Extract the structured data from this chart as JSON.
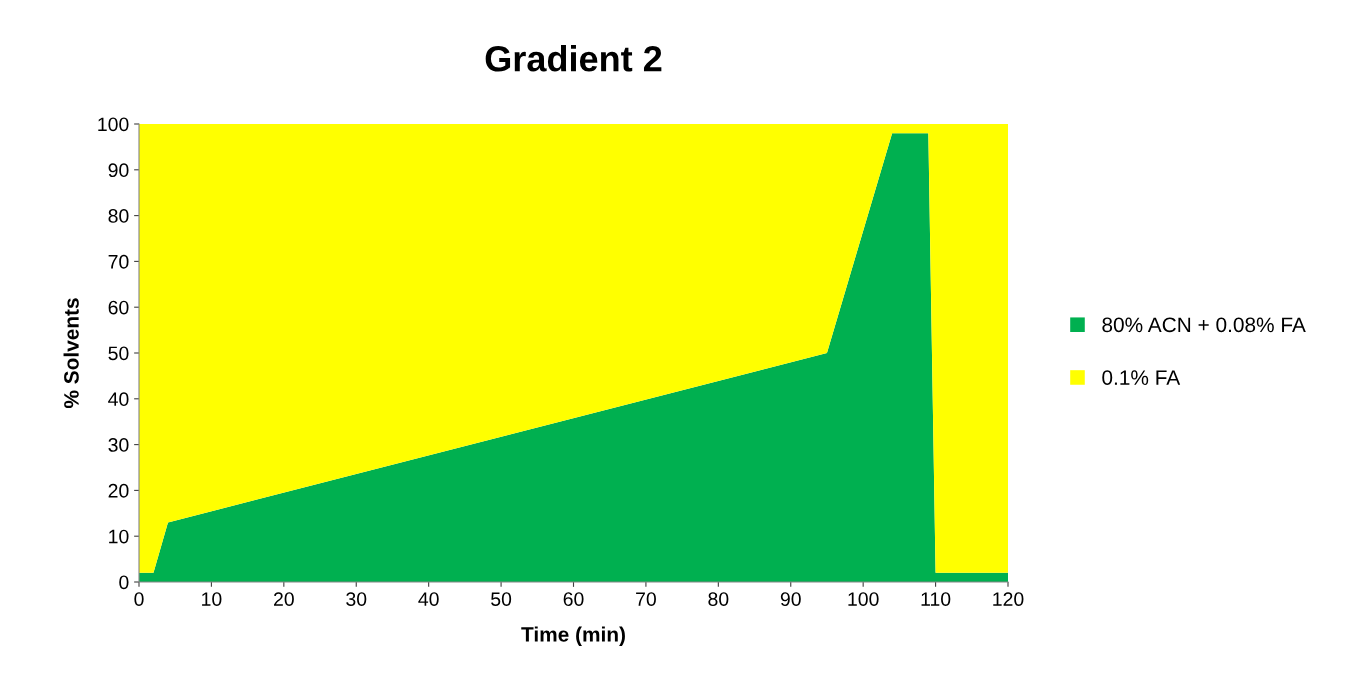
{
  "chart_data": {
    "type": "area",
    "title": "Gradient 2",
    "xlabel": "Time (min)",
    "ylabel": "% Solvents",
    "stacked": true,
    "x": [
      0,
      2,
      4,
      95,
      104,
      109,
      110,
      120
    ],
    "series": [
      {
        "name": "80% ACN + 0.08% FA",
        "color": "#00b050",
        "values": [
          2,
          2,
          13,
          50,
          98,
          98,
          2,
          2
        ]
      },
      {
        "name": "0.1% FA",
        "color": "#ffff00",
        "values": [
          98,
          98,
          87,
          50,
          2,
          2,
          98,
          98
        ]
      }
    ],
    "xlim": [
      0,
      120
    ],
    "xticks": [
      0,
      10,
      20,
      30,
      40,
      50,
      60,
      70,
      80,
      90,
      100,
      110,
      120
    ],
    "ylim": [
      0,
      100
    ],
    "yticks": [
      0,
      10,
      20,
      30,
      40,
      50,
      60,
      70,
      80,
      90,
      100
    ],
    "grid": false,
    "legend": "right"
  }
}
